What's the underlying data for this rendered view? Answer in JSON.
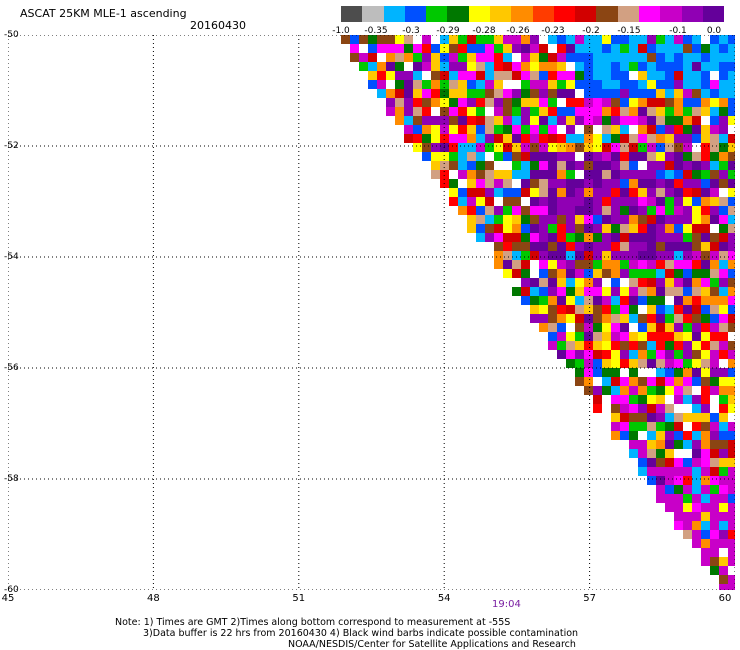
{
  "header": {
    "title": "ASCAT 25KM MLE-1 ascending",
    "date": "20160430"
  },
  "legend": {
    "colors": [
      "#4d4d4d",
      "#bdbdbd",
      "#00b4ff",
      "#0050ff",
      "#00c800",
      "#007800",
      "#ffff00",
      "#ffc800",
      "#ff8c00",
      "#ff3c00",
      "#ff0000",
      "#d20000",
      "#8b4513",
      "#d2a082",
      "#ff00ff",
      "#c800c8",
      "#9000b4",
      "#64009a"
    ],
    "tick_labels": [
      "-1.0",
      "-0.35",
      "-0.3",
      "-0.29",
      "-0.28",
      "-0.26",
      "-0.23",
      "-0.2",
      "-0.15",
      "-0.1",
      "0.0"
    ]
  },
  "map": {
    "lat_labels": [
      "-50",
      "-52",
      "-54",
      "-56",
      "-58",
      "-60"
    ],
    "lon_labels": [
      "45",
      "48",
      "51",
      "54",
      "57",
      "60"
    ],
    "lon_range": [
      45,
      60
    ],
    "lat_range": [
      -50,
      -60
    ],
    "grid": "dotted",
    "palette_colors": [
      "#ff0000",
      "#ff8c00",
      "#ffff00",
      "#00c800",
      "#0050ff",
      "#00b4ff",
      "#ff00ff",
      "#9000b4",
      "#64009a",
      "#d20000",
      "#8b4513",
      "#ffffff",
      "#ffc800",
      "#c800c8",
      "#d2a082",
      "#007800"
    ],
    "swath_time": "19:04"
  },
  "footer": {
    "note_line1": "Note: 1) Times are GMT 2)Times along bottom correspond to measurement at -55S",
    "note_line2": "3)Data buffer is 22 hrs from 20160430 4) Black wind barbs indicate possible contamination",
    "credit": "NOAA/NESDIS/Center for Satellite Applications and Research"
  }
}
